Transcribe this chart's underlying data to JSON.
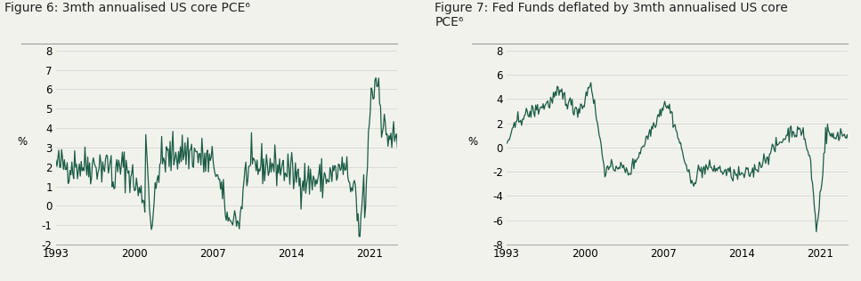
{
  "title1": "Figure 6: 3mth annualised US core PCE⁶",
  "title2": "Figure 7: Fed Funds deflated by 3mth annualised US core\nPCE⁶",
  "ylabel": "%",
  "line_color": "#1a5c45",
  "line_width": 0.9,
  "background_color": "#f2f2ed",
  "chart1_ylim": [
    -2,
    8
  ],
  "chart1_yticks": [
    -2,
    -1,
    0,
    1,
    2,
    3,
    4,
    5,
    6,
    7,
    8
  ],
  "chart2_ylim": [
    -8,
    8
  ],
  "chart2_yticks": [
    -8,
    -6,
    -4,
    -2,
    0,
    2,
    4,
    6,
    8
  ],
  "xticks": [
    1993,
    2000,
    2007,
    2014,
    2021
  ],
  "title_fontsize": 10,
  "axis_fontsize": 8.5,
  "grid_color": "#d0d0d0"
}
